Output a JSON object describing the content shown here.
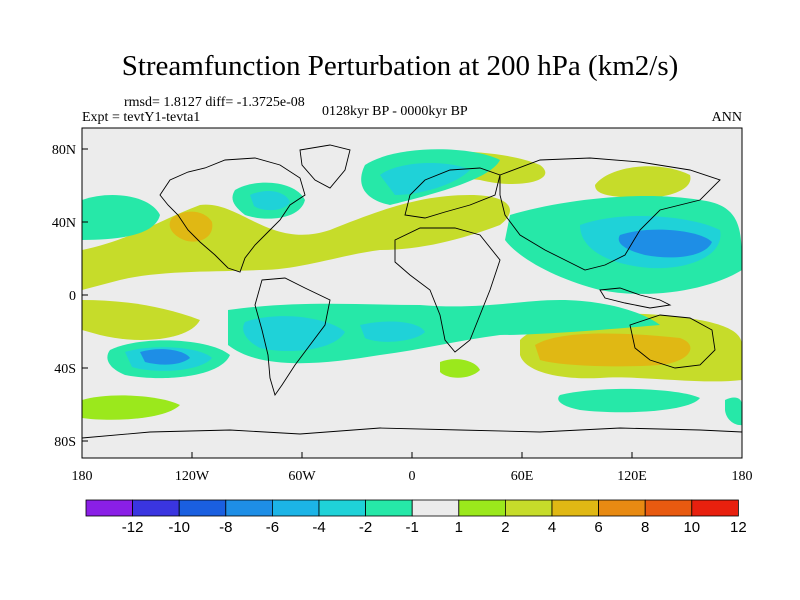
{
  "title": "Streamfunction Perturbation at 200 hPa (km2/s)",
  "stats_line": "rmsd= 1.8127 diff= -1.3725e-08",
  "expt_line": "Expt = tevtY1-tevta1",
  "period_line": "0128kyr BP - 0000kyr BP",
  "season": "ANN",
  "lat_ticks": [
    "80N",
    "40N",
    "0",
    "40S",
    "80S"
  ],
  "lon_ticks": [
    "180",
    "120W",
    "60W",
    "0",
    "60E",
    "120E",
    "180"
  ],
  "colorbar": {
    "labels": [
      "-12",
      "-10",
      "-8",
      "-6",
      "-4",
      "-2",
      "-1",
      "1",
      "2",
      "4",
      "6",
      "8",
      "10",
      "12"
    ],
    "colors": [
      "#8a1fe6",
      "#3a35e0",
      "#1a5fe0",
      "#1e8ee6",
      "#1cb4e6",
      "#1fd2d8",
      "#26e8a8",
      "#ececec",
      "#9be81c",
      "#c6dc2a",
      "#e0b814",
      "#e88a12",
      "#e85a10",
      "#e8200e"
    ]
  },
  "colors": {
    "neutral": "#ececec",
    "land_outline": "#000000"
  }
}
